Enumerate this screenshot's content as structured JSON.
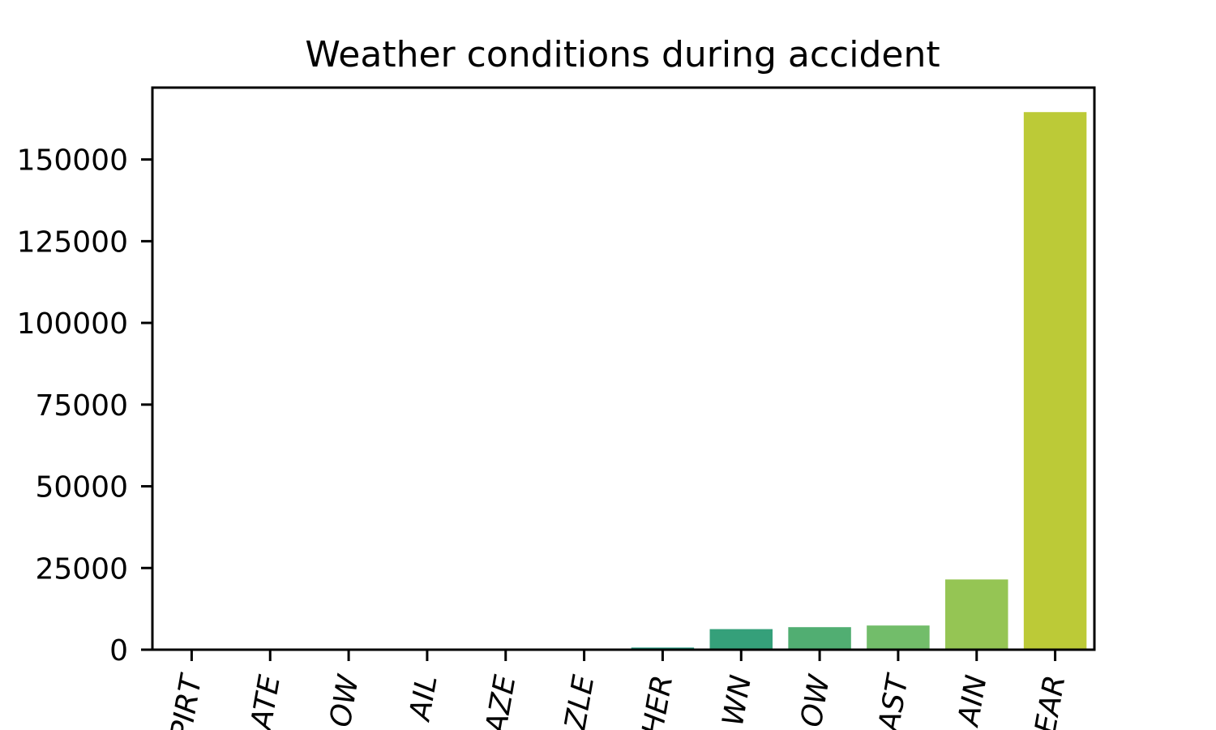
{
  "chart_data": {
    "type": "bar",
    "title": "Weather conditions during accident",
    "xlabel": "",
    "ylabel": "",
    "ylim": [
      0,
      172000
    ],
    "yticks": [
      0,
      25000,
      50000,
      75000,
      100000,
      125000,
      150000
    ],
    "ytick_labels": [
      "0",
      "25000",
      "50000",
      "75000",
      "100000",
      "125000",
      "150000"
    ],
    "categories": [
      "PIRT",
      "ATE",
      "OW",
      "AIL",
      "AZE",
      "ZLE",
      "HER",
      "WN",
      "OW",
      "AST",
      "AIN",
      "EAR"
    ],
    "values": [
      5,
      10,
      15,
      20,
      35,
      150,
      650,
      6300,
      6900,
      7400,
      21500,
      164500
    ],
    "colors": [
      "#2a0f5a",
      "#3b1f6e",
      "#3a3f8a",
      "#2f5c90",
      "#23738f",
      "#1e8a8a",
      "#1f9a7e",
      "#35a07a",
      "#51ae72",
      "#72bd6a",
      "#95c554",
      "#bcca37"
    ],
    "grid": false
  }
}
